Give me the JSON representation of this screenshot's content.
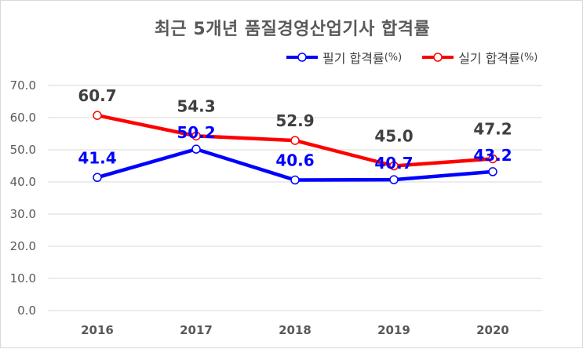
{
  "chart_data": {
    "type": "line",
    "title": "최근 5개년 품질경영산업기사 합격률",
    "categories": [
      "2016",
      "2017",
      "2018",
      "2019",
      "2020"
    ],
    "series": [
      {
        "name": "필기 합격률",
        "unit": "(%)",
        "values": [
          41.4,
          50.2,
          40.6,
          40.7,
          43.2
        ],
        "color": "#0000ff",
        "label_color": "#0000ff"
      },
      {
        "name": "실기 합격률",
        "unit": "(%)",
        "values": [
          60.7,
          54.3,
          52.9,
          45.0,
          47.2
        ],
        "color": "#ff0000",
        "label_color": "#404040"
      }
    ],
    "ylim": [
      0,
      70
    ],
    "yticks": [
      "0.0",
      "10.0",
      "20.0",
      "30.0",
      "40.0",
      "50.0",
      "60.0",
      "70.0"
    ],
    "grid": true,
    "legend": "top-right",
    "xlabel": "",
    "ylabel": ""
  }
}
